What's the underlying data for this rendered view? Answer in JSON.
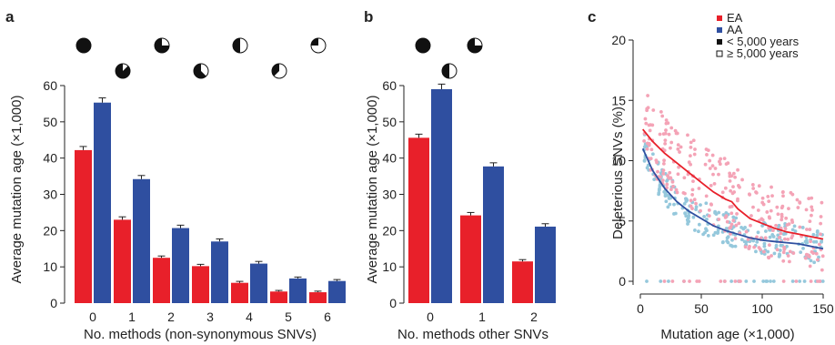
{
  "panel_labels": {
    "a": "a",
    "b": "b",
    "c": "c"
  },
  "colors": {
    "ea": "#e8202a",
    "aa": "#2f4fa0",
    "ea_light": "#f4a3b6",
    "aa_light": "#95c8dc"
  },
  "chart_data": [
    {
      "id": "a",
      "type": "bar",
      "xlabel": "No. methods (non-synonymous SNVs)",
      "ylabel": "Average mutation age (×1,000)",
      "categories": [
        "0",
        "1",
        "2",
        "3",
        "4",
        "5",
        "6"
      ],
      "series": [
        {
          "name": "EA",
          "values": [
            42.2,
            23.0,
            12.5,
            10.2,
            5.6,
            3.2,
            3.0
          ],
          "errors": [
            1.0,
            0.8,
            0.5,
            0.5,
            0.4,
            0.3,
            0.3
          ]
        },
        {
          "name": "AA",
          "values": [
            55.3,
            34.2,
            20.7,
            17.0,
            10.9,
            6.8,
            6.1
          ],
          "errors": [
            1.3,
            1.0,
            0.8,
            0.7,
            0.6,
            0.4,
            0.4
          ]
        }
      ],
      "pie_fractions": [
        0.0,
        0.125,
        0.25,
        0.375,
        0.5,
        0.625,
        0.75
      ],
      "ylim": [
        0,
        60
      ],
      "yticks": [
        0,
        10,
        20,
        30,
        40,
        50,
        60
      ]
    },
    {
      "id": "b",
      "type": "bar",
      "xlabel": "No. methods other SNVs",
      "ylabel": "Average mutation age (×1,000)",
      "categories": [
        "0",
        "1",
        "2"
      ],
      "series": [
        {
          "name": "EA",
          "values": [
            45.6,
            24.2,
            11.5
          ],
          "errors": [
            1.0,
            0.8,
            0.5
          ]
        },
        {
          "name": "AA",
          "values": [
            59.0,
            37.7,
            21.1
          ],
          "errors": [
            1.4,
            1.0,
            0.8
          ]
        }
      ],
      "pie_fractions": [
        0.0,
        0.5,
        0.25
      ],
      "ylim": [
        0,
        60
      ],
      "yticks": [
        0,
        10,
        20,
        30,
        40,
        50,
        60
      ]
    },
    {
      "id": "c",
      "type": "scatter",
      "xlabel": "Mutation age (×1,000)",
      "ylabel": "Deleterious SNVs (%)",
      "xlim": [
        0,
        150
      ],
      "ylim": [
        0,
        20
      ],
      "xticks": [
        0,
        50,
        100,
        150
      ],
      "yticks": [
        0,
        5,
        10,
        15,
        20
      ],
      "legend_position": "top-right",
      "legend": [
        {
          "marker": "■",
          "label": "EA",
          "color": "#e8202a"
        },
        {
          "marker": "■",
          "label": "AA",
          "color": "#2f4fa0"
        },
        {
          "marker": "■",
          "label": "< 5,000 years",
          "color": "#111111"
        },
        {
          "marker": "□",
          "label": "≥ 5,000 years",
          "color": "#111111"
        }
      ],
      "trend_lines": [
        {
          "name": "EA",
          "x": [
            2,
            10,
            20,
            30,
            40,
            50,
            60,
            70,
            75,
            80,
            90,
            100,
            110,
            120,
            130,
            140,
            150
          ],
          "y": [
            12.6,
            11.6,
            10.6,
            9.8,
            9.0,
            8.2,
            7.4,
            6.8,
            6.6,
            6.0,
            5.2,
            4.8,
            4.4,
            4.1,
            3.9,
            3.7,
            3.5
          ]
        },
        {
          "name": "AA",
          "x": [
            2,
            10,
            20,
            30,
            40,
            50,
            60,
            70,
            80,
            90,
            100,
            110,
            120,
            130,
            140,
            150
          ],
          "y": [
            11.0,
            9.2,
            7.7,
            6.6,
            5.8,
            5.2,
            4.6,
            4.2,
            3.9,
            3.6,
            3.4,
            3.3,
            3.2,
            3.1,
            2.9,
            2.7
          ]
        }
      ]
    }
  ]
}
